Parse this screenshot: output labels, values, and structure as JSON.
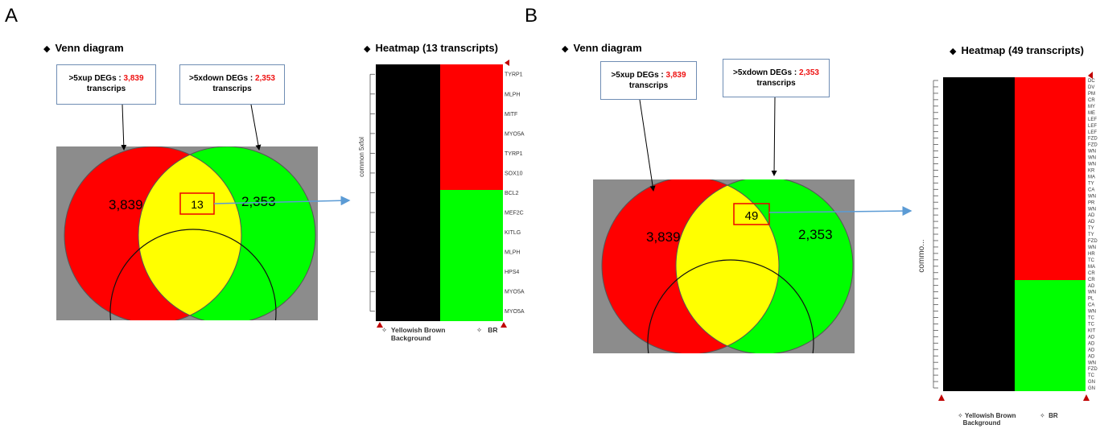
{
  "panels": {
    "A": {
      "letter": "A",
      "venn_title": "Venn diagram",
      "up_box": {
        "label": ">5xup DEGs : ",
        "count": "3,839",
        "unit": "transcrips"
      },
      "down_box": {
        "label": ">5xdown DEGs : ",
        "count": "2,353",
        "unit": "transcrips"
      },
      "venn_left": "3,839",
      "venn_right": "2,353",
      "venn_center": "13",
      "heatmap_title": "Heatmap (13 transcripts)",
      "dendro_label": "common 5xfol",
      "genes": [
        "TYRP1",
        "MLPH",
        "MITF",
        "MYO5A",
        "TYRP1",
        "SOX10",
        "BCL2",
        "MEF2C",
        "KITLG",
        "MLPH",
        "HPS4",
        "MYO5A",
        "MYO5A"
      ],
      "red_rows": 7,
      "legend_1": "Yellowish Brown",
      "legend_1b": "Background",
      "legend_2": "BR"
    },
    "B": {
      "letter": "B",
      "venn_title": "Venn diagram",
      "up_box": {
        "label": ">5xup DEGs : ",
        "count": "3,839",
        "unit": "transcrips"
      },
      "down_box": {
        "label": ">5xdown DEGs : ",
        "count": "2,353",
        "unit": "transcrips"
      },
      "venn_left": "3,839",
      "venn_right": "2,353",
      "venn_center": "49",
      "heatmap_title": "Heatmap (49 transcripts)",
      "dendro_label": "commo...",
      "genes": [
        "DC",
        "DV",
        "PM",
        "CR",
        "MY",
        "ME",
        "LEF",
        "LEF",
        "LEF",
        "FZD",
        "FZD",
        "WN",
        "WN",
        "WN",
        "KR",
        "MA",
        "TY",
        "CA",
        "WN",
        "PR",
        "WN",
        "AD",
        "AD",
        "TY",
        "TY",
        "FZD",
        "WN",
        "HR",
        "TC",
        "MA",
        "CR",
        "CR",
        "AD",
        "WN",
        "PL",
        "CA",
        "WN",
        "TC",
        "TC",
        "KIT",
        "AD",
        "AD",
        "AD",
        "AD",
        "WN",
        "FZD",
        "TC",
        "GN",
        "GN"
      ],
      "red_rows": 30,
      "legend_1": "Yellowish Brown",
      "legend_1b": "Background",
      "legend_2": "BR"
    }
  },
  "colors": {
    "red": "#ff0000",
    "green": "#00ff00",
    "yellow": "#ffff00",
    "gray": "#8c8c8c",
    "black": "#000000",
    "callout_border": "#6f8db4",
    "arrow": "#5b9bd5",
    "marker": "#c00000"
  }
}
